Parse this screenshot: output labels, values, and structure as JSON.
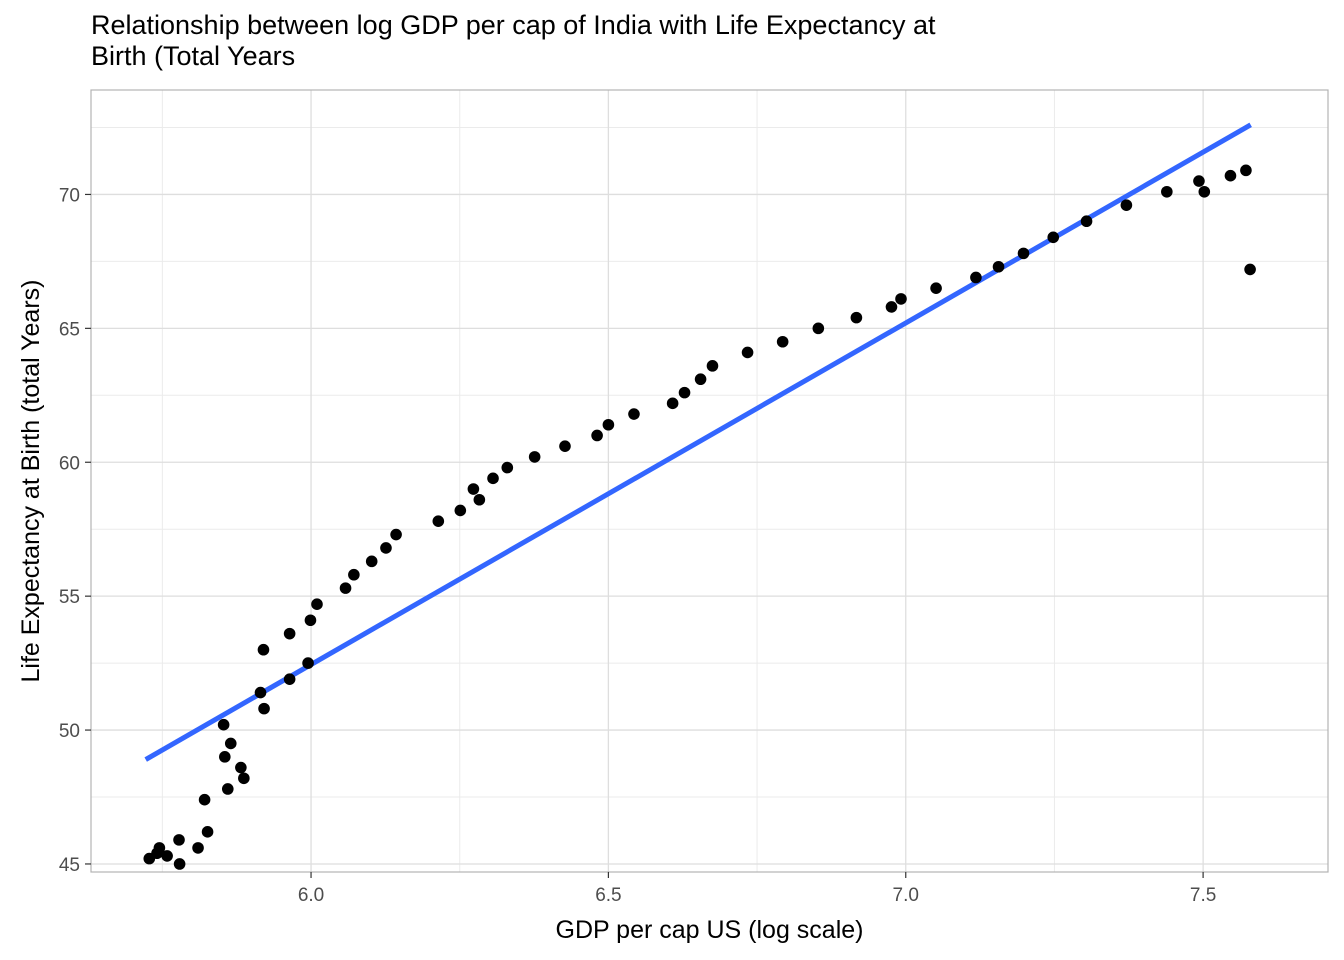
{
  "chart_data": {
    "type": "scatter",
    "title_lines": [
      "Relationship between log GDP per cap of India with Life Expectancy at",
      "Birth (Total Years"
    ],
    "xlabel": "GDP per cap US (log scale)",
    "ylabel": "Life Expectancy at Birth (total Years)",
    "xlim": [
      5.63,
      7.71
    ],
    "ylim": [
      44.7,
      73.9
    ],
    "x_ticks": [
      6.0,
      6.5,
      7.0,
      7.5
    ],
    "x_tick_labels": [
      "6.0",
      "6.5",
      "7.0",
      "7.5"
    ],
    "x_minor_ticks": [
      5.75,
      6.25,
      6.75,
      7.25
    ],
    "y_ticks": [
      45,
      50,
      55,
      60,
      65,
      70
    ],
    "y_tick_labels": [
      "45",
      "50",
      "55",
      "60",
      "65",
      "70"
    ],
    "y_minor_ticks": [
      47.5,
      52.5,
      57.5,
      62.5,
      67.5,
      72.5
    ],
    "grid": true,
    "point_color": "#000000",
    "line_color": "#3366ff",
    "points": [
      {
        "x": 5.728,
        "y": 45.2
      },
      {
        "x": 5.741,
        "y": 45.4
      },
      {
        "x": 5.745,
        "y": 45.6
      },
      {
        "x": 5.758,
        "y": 45.3
      },
      {
        "x": 5.778,
        "y": 45.9
      },
      {
        "x": 5.779,
        "y": 45.0
      },
      {
        "x": 5.81,
        "y": 45.6
      },
      {
        "x": 5.821,
        "y": 47.4
      },
      {
        "x": 5.826,
        "y": 46.2
      },
      {
        "x": 5.853,
        "y": 50.2
      },
      {
        "x": 5.855,
        "y": 49.0
      },
      {
        "x": 5.86,
        "y": 47.8
      },
      {
        "x": 5.865,
        "y": 49.5
      },
      {
        "x": 5.882,
        "y": 48.6
      },
      {
        "x": 5.887,
        "y": 48.2
      },
      {
        "x": 5.915,
        "y": 51.4
      },
      {
        "x": 5.92,
        "y": 53.0
      },
      {
        "x": 5.921,
        "y": 50.8
      },
      {
        "x": 5.964,
        "y": 51.9
      },
      {
        "x": 5.964,
        "y": 53.6
      },
      {
        "x": 5.995,
        "y": 52.5
      },
      {
        "x": 5.999,
        "y": 54.1
      },
      {
        "x": 6.01,
        "y": 54.7
      },
      {
        "x": 6.058,
        "y": 55.3
      },
      {
        "x": 6.072,
        "y": 55.8
      },
      {
        "x": 6.102,
        "y": 56.3
      },
      {
        "x": 6.126,
        "y": 56.8
      },
      {
        "x": 6.143,
        "y": 57.3
      },
      {
        "x": 6.214,
        "y": 57.8
      },
      {
        "x": 6.251,
        "y": 58.2
      },
      {
        "x": 6.273,
        "y": 59.0
      },
      {
        "x": 6.283,
        "y": 58.6
      },
      {
        "x": 6.306,
        "y": 59.4
      },
      {
        "x": 6.33,
        "y": 59.8
      },
      {
        "x": 6.376,
        "y": 60.2
      },
      {
        "x": 6.427,
        "y": 60.6
      },
      {
        "x": 6.481,
        "y": 61.0
      },
      {
        "x": 6.5,
        "y": 61.4
      },
      {
        "x": 6.543,
        "y": 61.8
      },
      {
        "x": 6.608,
        "y": 62.2
      },
      {
        "x": 6.628,
        "y": 62.6
      },
      {
        "x": 6.655,
        "y": 63.1
      },
      {
        "x": 6.675,
        "y": 63.6
      },
      {
        "x": 6.734,
        "y": 64.1
      },
      {
        "x": 6.793,
        "y": 64.5
      },
      {
        "x": 6.853,
        "y": 65.0
      },
      {
        "x": 6.917,
        "y": 65.4
      },
      {
        "x": 6.976,
        "y": 65.8
      },
      {
        "x": 6.992,
        "y": 66.1
      },
      {
        "x": 7.051,
        "y": 66.5
      },
      {
        "x": 7.118,
        "y": 66.9
      },
      {
        "x": 7.156,
        "y": 67.3
      },
      {
        "x": 7.198,
        "y": 67.8
      },
      {
        "x": 7.248,
        "y": 68.4
      },
      {
        "x": 7.304,
        "y": 69.0
      },
      {
        "x": 7.371,
        "y": 69.6
      },
      {
        "x": 7.439,
        "y": 70.1
      },
      {
        "x": 7.493,
        "y": 70.5
      },
      {
        "x": 7.502,
        "y": 70.1
      },
      {
        "x": 7.546,
        "y": 70.7
      },
      {
        "x": 7.572,
        "y": 70.9
      },
      {
        "x": 7.579,
        "y": 67.2
      }
    ],
    "fit_line": [
      {
        "x": 5.722,
        "y": 48.9
      },
      {
        "x": 7.58,
        "y": 72.6
      }
    ]
  }
}
